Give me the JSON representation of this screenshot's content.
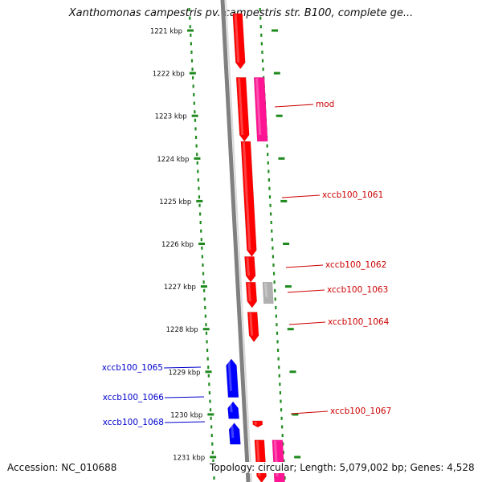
{
  "title": "Xanthomonas campestris pv. campestris str. B100, complete ge...",
  "footer": {
    "accession": "Accession: NC_010688",
    "summary": "Topology: circular; Length: 5,079,002 bp; Genes: 4,528"
  },
  "colors": {
    "forward": "#ff0000",
    "reverse": "#0000ff",
    "rna": "#ff1493",
    "other": "#b0b0b0",
    "tick": "#1e8a1e",
    "backbone": "#808080"
  },
  "ruler": {
    "unit": "kbp",
    "labels": [
      "1221 kbp",
      "1222 kbp",
      "1223 kbp",
      "1224 kbp",
      "1225 kbp",
      "1226 kbp",
      "1227 kbp",
      "1228 kbp",
      "1229 kbp",
      "1230 kbp",
      "1231 kbp"
    ],
    "start_kbp": 1221,
    "end_kbp": 1231
  },
  "features": [
    {
      "label": "",
      "strand": "+",
      "type": "gene",
      "start_kbp": 1220.6,
      "end_kbp": 1221.9
    },
    {
      "label": "",
      "strand": "+",
      "type": "gene",
      "start_kbp": 1222.1,
      "end_kbp": 1223.6
    },
    {
      "label": "mod",
      "strand": "+",
      "type": "rna",
      "start_kbp": 1222.1,
      "end_kbp": 1223.6
    },
    {
      "label": "xccb100_1061",
      "strand": "+",
      "type": "gene",
      "start_kbp": 1223.6,
      "end_kbp": 1226.3
    },
    {
      "label": "xccb100_1062",
      "strand": "+",
      "type": "gene",
      "start_kbp": 1226.3,
      "end_kbp": 1226.9
    },
    {
      "label": "xccb100_1063",
      "strand": "+",
      "type": "gene",
      "start_kbp": 1226.9,
      "end_kbp": 1227.5
    },
    {
      "label": "",
      "strand": "+",
      "type": "other",
      "start_kbp": 1226.9,
      "end_kbp": 1227.4
    },
    {
      "label": "xccb100_1064",
      "strand": "+",
      "type": "gene",
      "start_kbp": 1227.6,
      "end_kbp": 1228.3
    },
    {
      "label": "xccb100_1065",
      "strand": "-",
      "type": "gene",
      "start_kbp": 1228.7,
      "end_kbp": 1229.6
    },
    {
      "label": "xccb100_1066",
      "strand": "-",
      "type": "gene",
      "start_kbp": 1229.7,
      "end_kbp": 1230.1
    },
    {
      "label": "xccb100_1068",
      "strand": "-",
      "type": "gene",
      "start_kbp": 1230.2,
      "end_kbp": 1230.7
    },
    {
      "label": "xccb100_1067",
      "strand": "+",
      "type": "gene",
      "start_kbp": 1230.15,
      "end_kbp": 1230.3
    },
    {
      "label": "",
      "strand": "+",
      "type": "gene",
      "start_kbp": 1230.6,
      "end_kbp": 1231.6
    },
    {
      "label": "",
      "strand": "+",
      "type": "rna",
      "start_kbp": 1230.6,
      "end_kbp": 1231.6
    }
  ]
}
